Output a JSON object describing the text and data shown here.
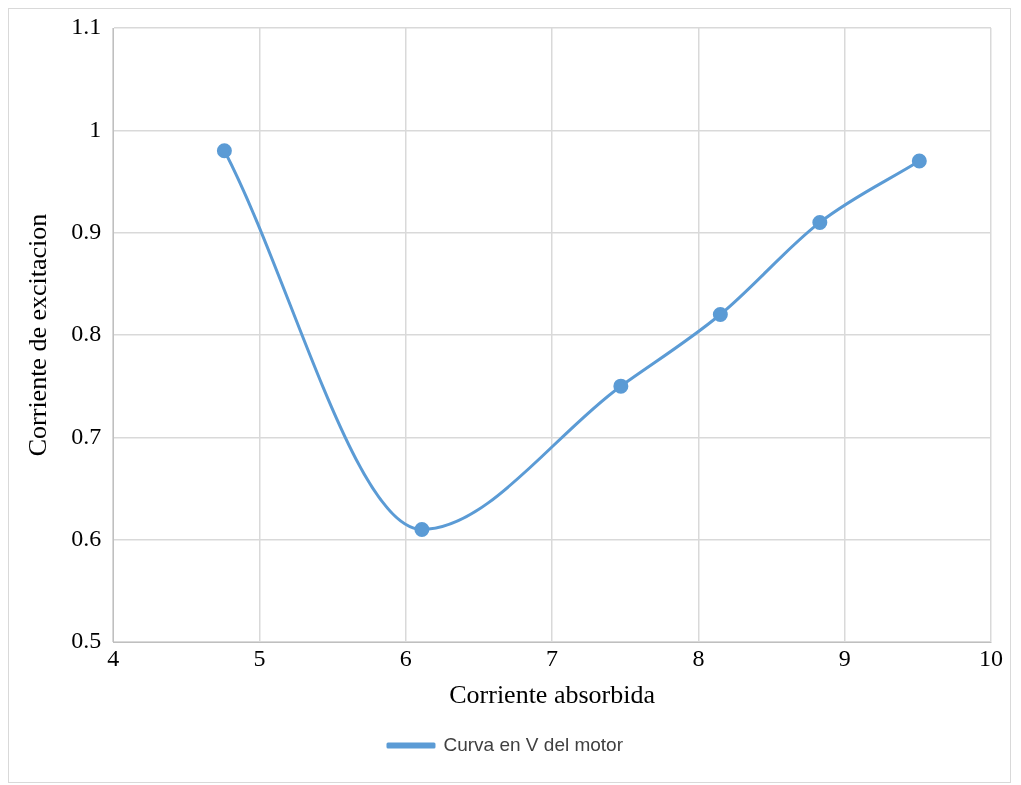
{
  "chart_data": {
    "type": "line",
    "xlabel": "Corriente absorbida",
    "ylabel": "Corriente de excitacion",
    "x": [
      4.76,
      6.11,
      7.47,
      8.15,
      8.83,
      9.51
    ],
    "series": [
      {
        "name": "Curva en V del motor",
        "color": "#5b9bd5",
        "values": [
          0.98,
          0.61,
          0.75,
          0.82,
          0.91,
          0.97
        ]
      }
    ],
    "xlim": [
      4,
      10
    ],
    "xticks": [
      4,
      5,
      6,
      7,
      8,
      9,
      10
    ],
    "ylim": [
      0.5,
      1.1
    ],
    "yticks": [
      0.5,
      0.6,
      0.7,
      0.8,
      0.9,
      1,
      1.1
    ],
    "grid": true,
    "legend": "bottom",
    "marker": "circle",
    "line_style": "solid"
  }
}
